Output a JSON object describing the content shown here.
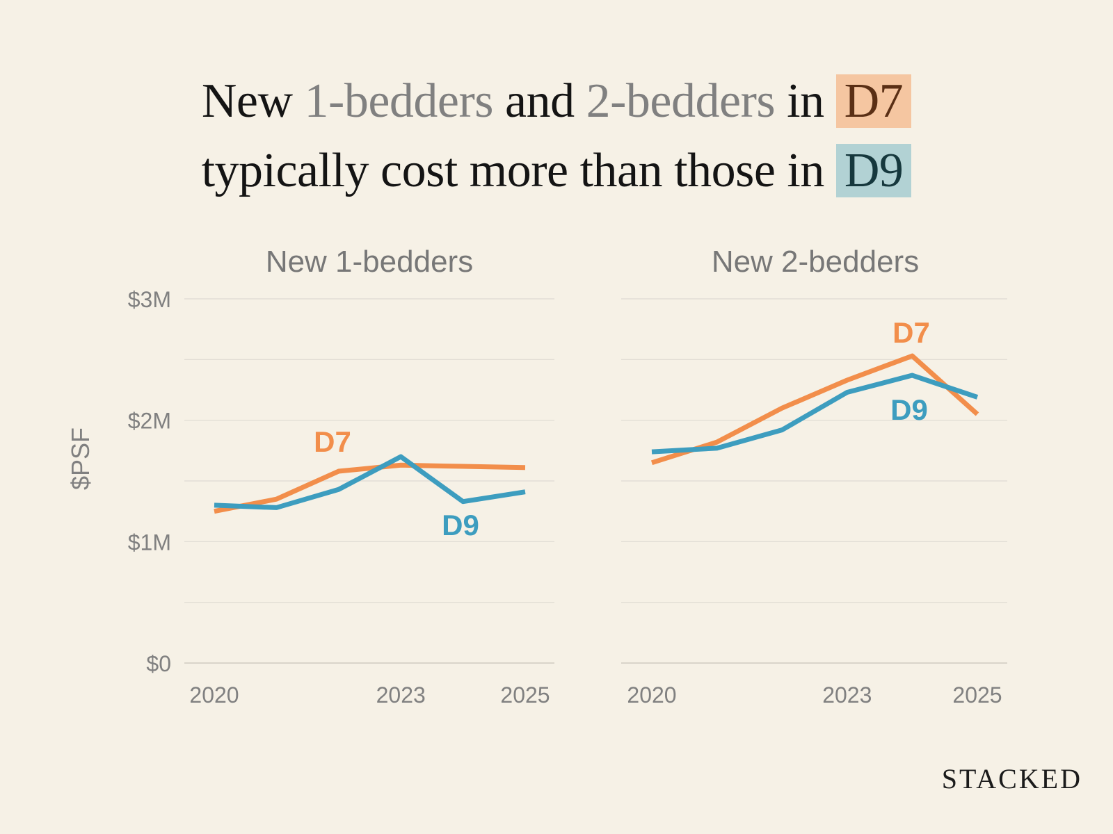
{
  "headline": {
    "line1": {
      "w1": "New ",
      "w2": "1-bedders",
      "w3": " and ",
      "w4": "2-bedders",
      "w5": " in ",
      "w6": "D7"
    },
    "line2": {
      "w1": "typically cost more than those in ",
      "w2": "D9"
    }
  },
  "colors": {
    "d7": "#f28e4b",
    "d9": "#3d9dbf",
    "grid": "#dedad2",
    "axis_text": "#808080"
  },
  "brand": "STACKED",
  "chart_data": [
    {
      "type": "line",
      "title": "New 1-bedders",
      "ylabel": "$PSF",
      "x": [
        2020,
        2021,
        2022,
        2023,
        2024,
        2025
      ],
      "xticks": [
        "2020",
        "2023",
        "2025"
      ],
      "ylim": [
        0,
        3000000
      ],
      "yticks": [
        "$0",
        "$1M",
        "$2M",
        "$3M"
      ],
      "series": [
        {
          "name": "D7",
          "values": [
            1250000,
            1350000,
            1580000,
            1630000,
            1620000,
            1610000
          ]
        },
        {
          "name": "D9",
          "values": [
            1300000,
            1280000,
            1430000,
            1700000,
            1330000,
            1410000
          ]
        }
      ]
    },
    {
      "type": "line",
      "title": "New 2-bedders",
      "x": [
        2020,
        2021,
        2022,
        2023,
        2024,
        2025
      ],
      "xticks": [
        "2020",
        "2023",
        "2025"
      ],
      "ylim": [
        0,
        3000000
      ],
      "series": [
        {
          "name": "D7",
          "values": [
            1650000,
            1820000,
            2100000,
            2330000,
            2530000,
            2050000
          ]
        },
        {
          "name": "D9",
          "values": [
            1740000,
            1770000,
            1920000,
            2230000,
            2370000,
            2190000
          ]
        }
      ]
    }
  ]
}
